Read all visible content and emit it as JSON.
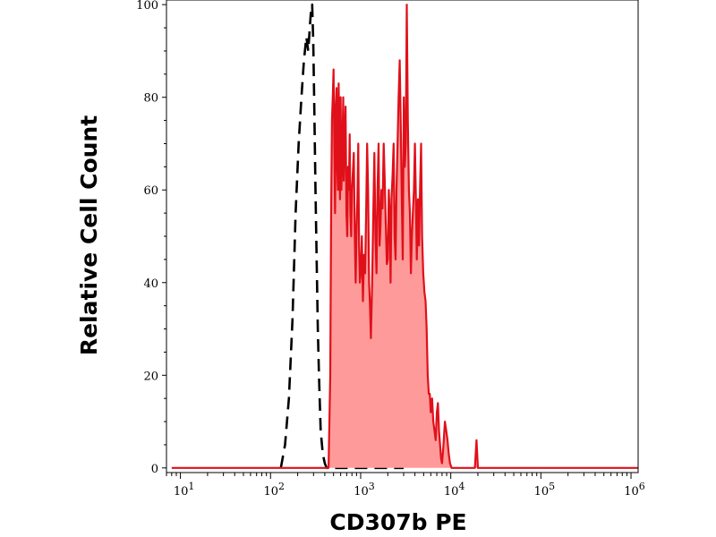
{
  "chart_data": {
    "type": "area",
    "title": "",
    "xlabel": "CD307b PE",
    "ylabel": "Relative Cell Count",
    "x_scale": "log",
    "xlim": [
      7,
      1200000
    ],
    "ylim": [
      -1,
      101
    ],
    "x_ticks": [
      {
        "value": 10,
        "base": "10",
        "exp": "1"
      },
      {
        "value": 100,
        "base": "10",
        "exp": "2"
      },
      {
        "value": 1000,
        "base": "10",
        "exp": "3"
      },
      {
        "value": 10000,
        "base": "10",
        "exp": "4"
      },
      {
        "value": 100000,
        "base": "10",
        "exp": "5"
      },
      {
        "value": 1000000,
        "base": "10",
        "exp": "6"
      }
    ],
    "y_ticks": [
      {
        "value": 0,
        "label": "0"
      },
      {
        "value": 20,
        "label": "20"
      },
      {
        "value": 40,
        "label": "40"
      },
      {
        "value": 60,
        "label": "60"
      },
      {
        "value": 80,
        "label": "80"
      },
      {
        "value": 100,
        "label": "100"
      }
    ],
    "grid": false,
    "legend": "none",
    "series": [
      {
        "style": "dashed-line",
        "color": "#000000",
        "x": [
          130,
          145,
          160,
          175,
          190,
          205,
          220,
          235,
          250,
          262,
          275,
          282,
          290,
          298,
          305,
          315,
          325,
          335,
          345,
          360,
          380,
          400,
          420,
          450,
          500,
          700,
          1000,
          3000
        ],
        "y": [
          0,
          5,
          15,
          32,
          55,
          70,
          80,
          88,
          93,
          90,
          96,
          99,
          100,
          92,
          80,
          60,
          45,
          30,
          20,
          8,
          3,
          1,
          0,
          0,
          0,
          0,
          0,
          0
        ]
      },
      {
        "style": "filled-area",
        "color": "#e0101a",
        "fill": "#ff9a9a",
        "x": [
          8,
          100,
          300,
          400,
          440,
          460,
          470,
          480,
          490,
          500,
          510,
          520,
          530,
          540,
          550,
          560,
          570,
          580,
          590,
          600,
          610,
          620,
          630,
          640,
          650,
          665,
          680,
          695,
          710,
          725,
          740,
          755,
          770,
          785,
          800,
          820,
          840,
          860,
          880,
          900,
          920,
          940,
          960,
          980,
          1000,
          1030,
          1060,
          1090,
          1120,
          1150,
          1180,
          1210,
          1240,
          1270,
          1300,
          1340,
          1380,
          1420,
          1460,
          1500,
          1540,
          1580,
          1620,
          1660,
          1700,
          1750,
          1800,
          1850,
          1900,
          1950,
          2000,
          2050,
          2100,
          2150,
          2200,
          2260,
          2320,
          2380,
          2440,
          2500,
          2570,
          2640,
          2710,
          2780,
          2850,
          2930,
          3010,
          3090,
          3170,
          3250,
          3340,
          3430,
          3520,
          3610,
          3700,
          3800,
          3900,
          4000,
          4100,
          4200,
          4320,
          4440,
          4560,
          4680,
          4800,
          4950,
          5100,
          5250,
          5400,
          5550,
          5700,
          5850,
          6000,
          6200,
          6400,
          6600,
          6800,
          7000,
          7200,
          7400,
          7600,
          7800,
          8000,
          8300,
          8600,
          8900,
          9200,
          9500,
          9800,
          10200,
          10600,
          11000,
          11500,
          12000,
          13000,
          15000,
          17000,
          18500,
          19300,
          20000,
          20800,
          22000,
          30000,
          100000,
          1000000,
          1200000
        ],
        "y": [
          0,
          0,
          0,
          0,
          0,
          20,
          55,
          75,
          80,
          86,
          70,
          55,
          78,
          82,
          65,
          60,
          83,
          70,
          58,
          80,
          60,
          65,
          72,
          80,
          62,
          70,
          78,
          55,
          50,
          65,
          60,
          72,
          55,
          50,
          60,
          64,
          68,
          50,
          40,
          52,
          58,
          70,
          48,
          40,
          42,
          50,
          36,
          46,
          42,
          55,
          70,
          60,
          40,
          35,
          28,
          40,
          55,
          68,
          50,
          42,
          60,
          70,
          48,
          52,
          60,
          56,
          70,
          62,
          53,
          44,
          45,
          60,
          55,
          40,
          58,
          63,
          70,
          50,
          45,
          60,
          70,
          80,
          88,
          75,
          60,
          45,
          80,
          65,
          70,
          100,
          75,
          60,
          55,
          42,
          50,
          55,
          60,
          70,
          58,
          45,
          58,
          48,
          60,
          70,
          50,
          42,
          38,
          36,
          30,
          20,
          16,
          16,
          12,
          15,
          10,
          8,
          6,
          12,
          14,
          8,
          5,
          2,
          1,
          5,
          10,
          8,
          6,
          3,
          1,
          0,
          0,
          0,
          0,
          0,
          0,
          0,
          0,
          0,
          6,
          0,
          0,
          0,
          0,
          0,
          0,
          0
        ]
      }
    ]
  }
}
